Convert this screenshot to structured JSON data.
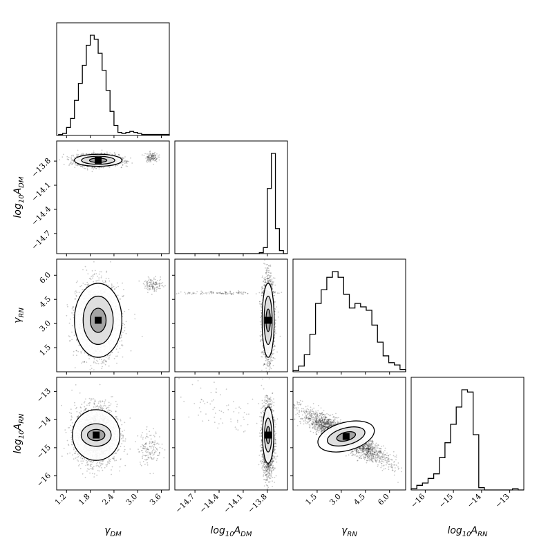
{
  "chart_data": {
    "type": "corner",
    "title": "",
    "parameters": [
      {
        "id": "gamma_dm",
        "label_main": "γ",
        "label_sub": "DM",
        "label_prefix": "",
        "range": [
          0.95,
          3.8
        ],
        "ticks": [
          1.2,
          1.8,
          2.4,
          3.0,
          3.6
        ],
        "tick_labels": [
          "1.2",
          "1.8",
          "2.4",
          "3.0",
          "3.6"
        ]
      },
      {
        "id": "log10_adm",
        "label_main": "A",
        "label_sub": "DM",
        "label_prefix": "log",
        "range": [
          -14.95,
          -13.55
        ],
        "ticks": [
          -14.7,
          -14.4,
          -14.1,
          -13.8
        ],
        "tick_labels": [
          "−14.7",
          "−14.4",
          "−14.1",
          "−13.8"
        ]
      },
      {
        "id": "gamma_rn",
        "label_main": "γ",
        "label_sub": "RN",
        "label_prefix": "",
        "range": [
          0.0,
          7.0
        ],
        "ticks": [
          1.5,
          3.0,
          4.5,
          6.0
        ],
        "tick_labels": [
          "1.5",
          "3.0",
          "4.5",
          "6.0"
        ]
      },
      {
        "id": "log10_arn",
        "label_main": "A",
        "label_sub": "RN",
        "label_prefix": "log",
        "range": [
          -16.5,
          -12.5
        ],
        "ticks": [
          -16,
          -15,
          -14,
          -13
        ],
        "tick_labels": [
          "−16",
          "−15",
          "−14",
          "−13"
        ]
      }
    ],
    "histograms": [
      {
        "param": "gamma_dm",
        "bin_edges": [
          1.0,
          1.1,
          1.2,
          1.3,
          1.4,
          1.5,
          1.6,
          1.7,
          1.8,
          1.9,
          2.0,
          2.1,
          2.2,
          2.3,
          2.4,
          2.5,
          2.6,
          2.7,
          2.8,
          2.9,
          3.0,
          3.1,
          3.2,
          3.3,
          3.4,
          3.5,
          3.6,
          3.7,
          3.8
        ],
        "counts": [
          1,
          2,
          8,
          17,
          35,
          52,
          70,
          90,
          100,
          96,
          82,
          65,
          45,
          24,
          10,
          3,
          2,
          3,
          4,
          3,
          2,
          1,
          1,
          1,
          1,
          1,
          1,
          1
        ]
      },
      {
        "param": "log10_adm",
        "bin_edges": [
          -14.95,
          -14.9,
          -14.85,
          -14.8,
          -14.75,
          -14.7,
          -14.65,
          -14.6,
          -14.55,
          -14.5,
          -14.45,
          -14.4,
          -14.35,
          -14.3,
          -14.25,
          -14.2,
          -14.15,
          -14.1,
          -14.05,
          -14.0,
          -13.95,
          -13.9,
          -13.85,
          -13.8,
          -13.75,
          -13.7,
          -13.65,
          -13.6,
          -13.55
        ],
        "counts": [
          0,
          0,
          0,
          0,
          0,
          0,
          0,
          0,
          0,
          0,
          0,
          0,
          0,
          0,
          0,
          0,
          0,
          0,
          0,
          0,
          0,
          1,
          6,
          65,
          100,
          25,
          3,
          0
        ]
      },
      {
        "param": "gamma_rn",
        "bin_edges": [
          0.0,
          0.35,
          0.7,
          1.05,
          1.4,
          1.75,
          2.1,
          2.45,
          2.8,
          3.15,
          3.5,
          3.85,
          4.2,
          4.55,
          4.9,
          5.25,
          5.6,
          5.95,
          6.3,
          6.65,
          7.0
        ],
        "counts": [
          1,
          5,
          15,
          33,
          60,
          72,
          83,
          88,
          83,
          68,
          56,
          60,
          57,
          54,
          41,
          26,
          14,
          8,
          6,
          2
        ]
      },
      {
        "param": "log10_arn",
        "bin_edges": [
          -16.5,
          -16.3,
          -16.1,
          -15.9,
          -15.7,
          -15.5,
          -15.3,
          -15.1,
          -14.9,
          -14.7,
          -14.5,
          -14.3,
          -14.1,
          -13.9,
          -13.7,
          -13.5,
          -13.3,
          -13.1,
          -12.9,
          -12.7,
          -12.5
        ],
        "counts": [
          1,
          4,
          6,
          10,
          14,
          28,
          41,
          57,
          72,
          87,
          85,
          48,
          2,
          0,
          0,
          0,
          0,
          0,
          1,
          0
        ]
      }
    ],
    "density_panels": [
      {
        "x": "gamma_dm",
        "y": "log10_adm",
        "blobs": [
          {
            "cx": 2.0,
            "cy": -13.79,
            "sx": 0.26,
            "sy": 0.035,
            "rho": 0.0,
            "w": 1.0
          },
          {
            "cx": 3.35,
            "cy": -13.75,
            "sx": 0.08,
            "sy": 0.03,
            "rho": 0.0,
            "w": 0.05
          }
        ],
        "contour_levels": [
          {
            "sx": 0.6,
            "sy": 0.075
          },
          {
            "sx": 0.42,
            "sy": 0.05
          },
          {
            "sx": 0.22,
            "sy": 0.027
          }
        ],
        "contour_center": [
          2.0,
          -13.79
        ]
      },
      {
        "x": "gamma_dm",
        "y": "gamma_rn",
        "blobs": [
          {
            "cx": 2.0,
            "cy": 3.2,
            "sx": 0.26,
            "sy": 1.1,
            "rho": 0.0,
            "w": 1.0
          },
          {
            "cx": 3.4,
            "cy": 5.4,
            "sx": 0.12,
            "sy": 0.2,
            "rho": 0.0,
            "w": 0.05
          }
        ],
        "contour_levels": [
          {
            "sx": 0.6,
            "sy": 2.3
          },
          {
            "sx": 0.38,
            "sy": 1.5
          },
          {
            "sx": 0.2,
            "sy": 0.75
          }
        ],
        "contour_center": [
          2.0,
          3.2
        ]
      },
      {
        "x": "gamma_dm",
        "y": "log10_arn",
        "blobs": [
          {
            "cx": 1.95,
            "cy": -14.55,
            "sx": 0.26,
            "sy": 0.5,
            "rho": 0.0,
            "w": 1.0
          },
          {
            "cx": 3.3,
            "cy": -15.0,
            "sx": 0.15,
            "sy": 0.3,
            "rho": 0.0,
            "w": 0.06
          }
        ],
        "contour_levels": [
          {
            "sx": 0.6,
            "sy": 0.9
          },
          {
            "sx": 0.38,
            "sy": 0.4
          },
          {
            "sx": 0.22,
            "sy": 0.2
          }
        ],
        "contour_center": [
          1.95,
          -14.55
        ]
      },
      {
        "x": "log10_adm",
        "y": "gamma_rn",
        "blobs": [
          {
            "cx": -13.79,
            "cy": 3.3,
            "sx": 0.035,
            "sy": 1.2,
            "rho": 0.0,
            "w": 1.0
          },
          {
            "cx": -14.3,
            "cy": 4.9,
            "sx": 0.35,
            "sy": 0.05,
            "rho": 0.0,
            "w": 0.05
          }
        ],
        "contour_levels": [
          {
            "sx": 0.075,
            "sy": 2.3
          },
          {
            "sx": 0.05,
            "sy": 1.5
          },
          {
            "sx": 0.027,
            "sy": 0.7
          }
        ],
        "contour_center": [
          -13.79,
          3.2
        ]
      },
      {
        "x": "log10_adm",
        "y": "log10_arn",
        "blobs": [
          {
            "cx": -13.79,
            "cy": -14.7,
            "sx": 0.035,
            "sy": 0.6,
            "rho": 0.0,
            "w": 1.0
          },
          {
            "cx": -14.3,
            "cy": -13.7,
            "sx": 0.3,
            "sy": 0.5,
            "rho": -0.6,
            "w": 0.03
          }
        ],
        "contour_levels": [
          {
            "sx": 0.07,
            "sy": 1.0
          },
          {
            "sx": 0.045,
            "sy": 0.6
          },
          {
            "sx": 0.025,
            "sy": 0.3
          }
        ],
        "contour_center": [
          -13.79,
          -14.55
        ]
      },
      {
        "x": "gamma_rn",
        "y": "log10_arn",
        "blobs": [
          {
            "cx": 3.2,
            "cy": -14.6,
            "sx": 1.3,
            "sy": 0.45,
            "rho": -0.9,
            "w": 1.0
          }
        ],
        "contour_levels": [
          {
            "sx": 1.8,
            "sy": 0.5
          },
          {
            "sx": 1.2,
            "sy": 0.3
          },
          {
            "sx": 0.6,
            "sy": 0.15
          }
        ],
        "contour_center": [
          3.3,
          -14.6
        ],
        "contour_angle_deg": -15
      }
    ],
    "grid": false,
    "legend": "none"
  }
}
